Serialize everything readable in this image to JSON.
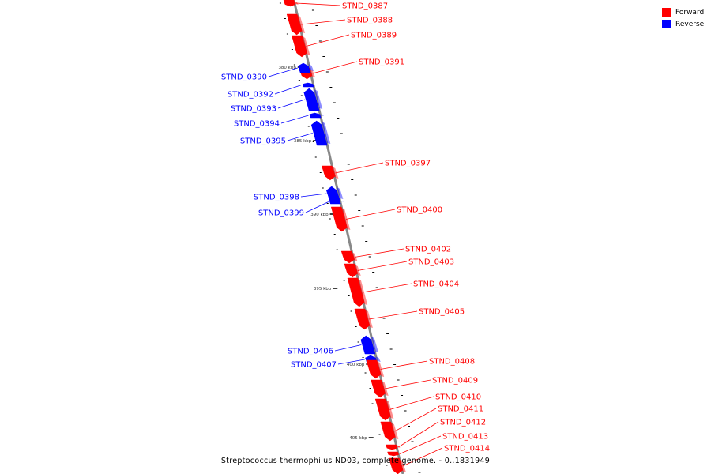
{
  "colors": {
    "forward": "#ff0000",
    "reverse": "#0000ff",
    "axis": "#888888",
    "tick": "#000000"
  },
  "legend": {
    "forward": "Forward",
    "reverse": "Reverse"
  },
  "caption": "Streptococcus thermophilus ND03, complete genome. - 0..1831949",
  "kbp_labels": [
    "380 kbp",
    "385 kbp",
    "390 kbp",
    "395 kbp",
    "400 kbp",
    "405 kbp"
  ],
  "genes": [
    {
      "name": "STND_0387",
      "strand": "forward"
    },
    {
      "name": "STND_0388",
      "strand": "forward"
    },
    {
      "name": "STND_0389",
      "strand": "forward"
    },
    {
      "name": "STND_0391",
      "strand": "forward"
    },
    {
      "name": "STND_0390",
      "strand": "reverse"
    },
    {
      "name": "STND_0392",
      "strand": "reverse"
    },
    {
      "name": "STND_0393",
      "strand": "reverse"
    },
    {
      "name": "STND_0394",
      "strand": "reverse"
    },
    {
      "name": "STND_0395",
      "strand": "reverse"
    },
    {
      "name": "STND_0397",
      "strand": "forward"
    },
    {
      "name": "STND_0398",
      "strand": "reverse"
    },
    {
      "name": "STND_0399",
      "strand": "reverse"
    },
    {
      "name": "STND_0400",
      "strand": "forward"
    },
    {
      "name": "STND_0402",
      "strand": "forward"
    },
    {
      "name": "STND_0403",
      "strand": "forward"
    },
    {
      "name": "STND_0404",
      "strand": "forward"
    },
    {
      "name": "STND_0405",
      "strand": "forward"
    },
    {
      "name": "STND_0406",
      "strand": "reverse"
    },
    {
      "name": "STND_0407",
      "strand": "reverse"
    },
    {
      "name": "STND_0408",
      "strand": "forward"
    },
    {
      "name": "STND_0409",
      "strand": "forward"
    },
    {
      "name": "STND_0410",
      "strand": "forward"
    },
    {
      "name": "STND_0411",
      "strand": "forward"
    },
    {
      "name": "STND_0412",
      "strand": "forward"
    },
    {
      "name": "STND_0413",
      "strand": "forward"
    },
    {
      "name": "STND_0414",
      "strand": "forward"
    }
  ]
}
